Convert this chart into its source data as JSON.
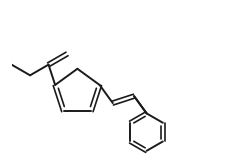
{
  "bg_color": "#ffffff",
  "line_color": "#1a1a1a",
  "line_width": 1.4,
  "figsize": [
    2.32,
    1.64
  ],
  "dpi": 100
}
